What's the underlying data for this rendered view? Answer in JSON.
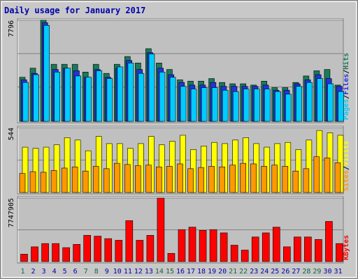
{
  "chart_data": {
    "type": "bar",
    "title": "Daily usage for January 2017",
    "categories": [
      "1",
      "2",
      "3",
      "4",
      "5",
      "6",
      "7",
      "8",
      "9",
      "10",
      "11",
      "12",
      "13",
      "14",
      "15",
      "16",
      "17",
      "18",
      "19",
      "20",
      "21",
      "22",
      "23",
      "24",
      "25",
      "26",
      "27",
      "28",
      "29",
      "30",
      "31"
    ],
    "weekend_days": [
      "1",
      "7",
      "8",
      "14",
      "15",
      "21",
      "22",
      "28",
      "29"
    ],
    "colors": {
      "hits": "#1a7a5a",
      "files": "#2233dd",
      "pages": "#00ccff",
      "visits": "#ffff00",
      "sites": "#ff9900",
      "kbytes": "#ff0000",
      "title": "#0000aa",
      "day_normal": "#0000aa",
      "day_weekend": "#116644",
      "plot_bg": "#c0c0c0",
      "frame_bg": "#c8c8c8"
    },
    "panels": [
      {
        "id": "hits_files_pages",
        "ymax_label": "7796",
        "ymax": 7796,
        "right_labels": [
          {
            "text": "Pages",
            "color": "#00ccff"
          },
          {
            "text": "/",
            "color": "#000000"
          },
          {
            "text": "Files",
            "color": "#2233dd"
          },
          {
            "text": "/",
            "color": "#000000"
          },
          {
            "text": "Hits",
            "color": "#1a7a5a"
          }
        ],
        "series": [
          {
            "key": "hits",
            "values": [
              3400,
              4100,
              7796,
              4400,
              4400,
              4400,
              3800,
              4400,
              3700,
              4400,
              5000,
              4500,
              5600,
              4500,
              4000,
              3200,
              3100,
              3100,
              3300,
              3000,
              2900,
              2900,
              2800,
              3100,
              2600,
              2600,
              3000,
              3500,
              3900,
              4000,
              2800
            ]
          },
          {
            "key": "files",
            "values": [
              3200,
              3700,
              7600,
              4000,
              4100,
              3900,
              3400,
              4000,
              3400,
              4100,
              4700,
              4000,
              5300,
              4100,
              3600,
              3000,
              2800,
              2800,
              3000,
              2700,
              2700,
              2700,
              2700,
              2800,
              2400,
              2400,
              2900,
              3200,
              3600,
              3300,
              2700
            ]
          },
          {
            "key": "pages",
            "values": [
              3000,
              3600,
              7400,
              3800,
              4100,
              3500,
              3400,
              3900,
              3300,
              4200,
              4500,
              3700,
              5200,
              3800,
              3400,
              2700,
              2500,
              2600,
              2600,
              2400,
              2300,
              2500,
              2500,
              2500,
              2300,
              2100,
              2700,
              3000,
              3300,
              2900,
              2300
            ]
          }
        ]
      },
      {
        "id": "visits_sites",
        "ymax_label": "544",
        "ymax": 544,
        "right_labels": [
          {
            "text": "Sites",
            "color": "#ff9900"
          },
          {
            "text": "/",
            "color": "#000000"
          },
          {
            "text": "Visits",
            "color": "#ffff00"
          }
        ],
        "series": [
          {
            "key": "visits",
            "values": [
              380,
              370,
              380,
              400,
              460,
              440,
              350,
              470,
              410,
              410,
              370,
              410,
              470,
              400,
              430,
              480,
              360,
              390,
              420,
              410,
              440,
              460,
              410,
              380,
              410,
              420,
              360,
              440,
              520,
              500,
              480
            ]
          },
          {
            "key": "sites",
            "values": [
              160,
              175,
              170,
              185,
              205,
              215,
              180,
              220,
              200,
              245,
              235,
              225,
              230,
              215,
              220,
              240,
              200,
              210,
              220,
              215,
              230,
              245,
              240,
              220,
              230,
              220,
              180,
              200,
              300,
              290,
              250
            ]
          }
        ]
      },
      {
        "id": "kbytes",
        "ymax_label": "7747905",
        "ymax": 7747905,
        "right_labels": [
          {
            "text": "KBytes",
            "color": "#ff0000"
          }
        ],
        "series": [
          {
            "key": "kbytes",
            "values": [
              900000,
              1800000,
              2200000,
              2200000,
              1700000,
              2100000,
              3200000,
              3100000,
              2800000,
              2600000,
              5000000,
              2600000,
              3200000,
              7747905,
              1000000,
              3900000,
              4200000,
              3800000,
              3900000,
              3500000,
              2000000,
              1400000,
              3000000,
              3500000,
              4200000,
              1800000,
              3000000,
              3000000,
              2700000,
              4900000,
              2200000
            ]
          }
        ]
      }
    ]
  }
}
